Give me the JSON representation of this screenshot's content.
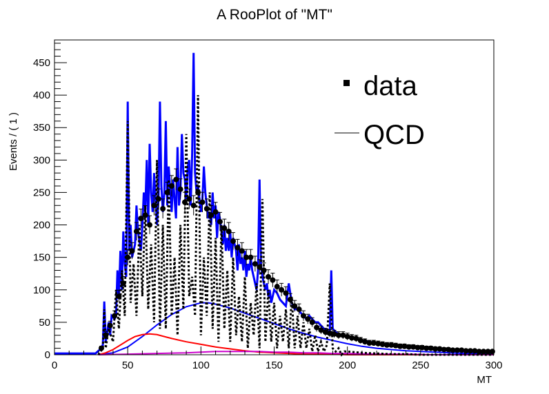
{
  "chart_data": {
    "type": "line",
    "title": "A RooPlot of \"MT\"",
    "xlabel": "MT",
    "ylabel": "Events / ( 1 )",
    "xlim": [
      0,
      300
    ],
    "ylim": [
      0,
      485
    ],
    "x_ticks": [
      "0",
      "50",
      "100",
      "150",
      "200",
      "250",
      "300"
    ],
    "y_ticks": [
      "0",
      "50",
      "100",
      "150",
      "200",
      "250",
      "300",
      "350",
      "400",
      "450"
    ],
    "grid": false,
    "legend": {
      "position": "top-right",
      "entries": [
        {
          "label": "data",
          "marker": "square"
        },
        {
          "label": "QCD",
          "marker": "line"
        }
      ]
    },
    "data_points": {
      "x": [
        32,
        35,
        38,
        41,
        44,
        47,
        50,
        53,
        56,
        59,
        62,
        65,
        68,
        71,
        74,
        77,
        80,
        83,
        86,
        89,
        92,
        95,
        98,
        101,
        104,
        107,
        110,
        113,
        116,
        119,
        122,
        125,
        128,
        131,
        134,
        137,
        140,
        143,
        146,
        149,
        152,
        155,
        158,
        161,
        164,
        167,
        170,
        173,
        176,
        179,
        182,
        185,
        188,
        191,
        194,
        197,
        200,
        203,
        206,
        209,
        212,
        215,
        218,
        221,
        224,
        227,
        230,
        233,
        236,
        239,
        242,
        245,
        248,
        251,
        254,
        257,
        260,
        263,
        266,
        269,
        272,
        275,
        278,
        281,
        284,
        287,
        290,
        293,
        296,
        299
      ],
      "y": [
        10,
        30,
        45,
        60,
        90,
        110,
        150,
        160,
        190,
        210,
        215,
        200,
        230,
        240,
        225,
        250,
        260,
        270,
        255,
        235,
        240,
        230,
        250,
        235,
        225,
        215,
        220,
        205,
        195,
        190,
        175,
        165,
        160,
        150,
        150,
        140,
        135,
        130,
        120,
        115,
        105,
        100,
        95,
        85,
        75,
        70,
        60,
        55,
        50,
        42,
        38,
        35,
        33,
        32,
        30,
        30,
        28,
        26,
        25,
        22,
        20,
        18,
        18,
        17,
        16,
        15,
        15,
        14,
        13,
        13,
        12,
        12,
        11,
        11,
        10,
        10,
        9,
        9,
        8,
        8,
        7,
        7,
        7,
        6,
        6,
        6,
        5,
        5,
        5,
        5
      ]
    },
    "series": [
      {
        "name": "QCD",
        "color": "#0000ff",
        "x": [
          0,
          28,
          31,
          33,
          34,
          35,
          37,
          38,
          39,
          41,
          42,
          43,
          44,
          45,
          46,
          47,
          48,
          49,
          50,
          51,
          52,
          53,
          55,
          56,
          57,
          59,
          60,
          61,
          62,
          63,
          64,
          65,
          66,
          67,
          68,
          70,
          71,
          72,
          73,
          74,
          75,
          76,
          77,
          78,
          80,
          81,
          82,
          83,
          84,
          85,
          86,
          87,
          88,
          89,
          90,
          91,
          92,
          93,
          94,
          95,
          96,
          97,
          98,
          99,
          100,
          101,
          102,
          103,
          104,
          105,
          106,
          107,
          108,
          109,
          110,
          111,
          112,
          113,
          114,
          115,
          116,
          117,
          118,
          119,
          120,
          121,
          122,
          123,
          124,
          125,
          126,
          127,
          128,
          129,
          130,
          131,
          132,
          133,
          134,
          135,
          136,
          137,
          138,
          139,
          140,
          141,
          142,
          143,
          144,
          145,
          146,
          147,
          148,
          150,
          152,
          154,
          156,
          158,
          160,
          162,
          164,
          166,
          168,
          170,
          172,
          174,
          176,
          178,
          180,
          182,
          184,
          186,
          187,
          188,
          189,
          190,
          192,
          195,
          200,
          205,
          210,
          220,
          230,
          240,
          250,
          260,
          270,
          280,
          290,
          300
        ],
        "y": [
          2,
          2,
          8,
          15,
          82,
          20,
          50,
          30,
          60,
          55,
          60,
          130,
          90,
          160,
          100,
          190,
          140,
          120,
          390,
          160,
          200,
          150,
          170,
          230,
          190,
          160,
          200,
          250,
          220,
          300,
          200,
          325,
          250,
          220,
          280,
          200,
          240,
          390,
          260,
          220,
          250,
          360,
          230,
          290,
          220,
          270,
          240,
          210,
          320,
          230,
          250,
          340,
          280,
          270,
          240,
          290,
          300,
          230,
          310,
          465,
          280,
          250,
          260,
          240,
          220,
          240,
          290,
          250,
          230,
          210,
          220,
          200,
          250,
          210,
          230,
          180,
          220,
          210,
          190,
          170,
          200,
          160,
          180,
          160,
          190,
          150,
          180,
          170,
          160,
          130,
          170,
          140,
          150,
          130,
          160,
          120,
          140,
          130,
          150,
          130,
          120,
          110,
          100,
          130,
          270,
          140,
          120,
          110,
          100,
          110,
          90,
          100,
          80,
          100,
          95,
          85,
          80,
          75,
          110,
          80,
          70,
          70,
          65,
          60,
          55,
          60,
          55,
          50,
          50,
          45,
          40,
          38,
          36,
          35,
          130,
          40,
          35,
          30,
          28,
          25,
          22,
          18,
          15,
          12,
          10,
          8,
          6,
          5,
          4,
          3
        ]
      },
      {
        "name": "",
        "color": "#0000ff",
        "x": [
          30,
          40,
          50,
          60,
          70,
          80,
          90,
          100,
          105,
          110,
          120,
          130,
          140,
          150,
          160,
          170,
          180,
          190,
          200,
          210,
          220,
          230,
          240,
          250,
          260,
          270,
          280,
          290,
          300
        ],
        "y": [
          0,
          3,
          12,
          28,
          46,
          62,
          74,
          80,
          80,
          78,
          72,
          64,
          56,
          48,
          40,
          33,
          27,
          22,
          17,
          13,
          10,
          8,
          6,
          5,
          4,
          3,
          2,
          2,
          1
        ]
      },
      {
        "name": "",
        "color": "#ff0000",
        "x": [
          30,
          35,
          40,
          45,
          50,
          55,
          60,
          65,
          70,
          75,
          80,
          90,
          100,
          110,
          120,
          130,
          140,
          150,
          160,
          170,
          180,
          190,
          200,
          220,
          240,
          260,
          280,
          300
        ],
        "y": [
          0,
          3,
          8,
          15,
          22,
          28,
          31,
          32,
          31,
          28,
          25,
          20,
          16,
          12,
          9,
          6,
          4,
          3,
          2,
          1,
          1,
          1,
          0,
          0,
          0,
          0,
          0,
          0
        ]
      },
      {
        "name": "",
        "color": "#cc00cc",
        "x": [
          30,
          50,
          70,
          90,
          100,
          110,
          120,
          130,
          140,
          150,
          160,
          170,
          180,
          190,
          200,
          220,
          240,
          260,
          280,
          300
        ],
        "y": [
          0,
          1,
          2,
          3,
          4,
          5,
          5,
          5,
          5,
          4,
          4,
          3,
          3,
          2,
          2,
          1,
          1,
          0,
          0,
          0
        ]
      },
      {
        "name": "",
        "color": "#000000",
        "dashed": true,
        "x": [
          30,
          33,
          34,
          35,
          37,
          40,
          42,
          44,
          46,
          48,
          50,
          52,
          54,
          56,
          58,
          60,
          62,
          64,
          66,
          68,
          70,
          72,
          74,
          76,
          78,
          80,
          82,
          84,
          86,
          88,
          90,
          92,
          94,
          96,
          98,
          100,
          102,
          104,
          106,
          108,
          110,
          112,
          114,
          116,
          118,
          120,
          122,
          124,
          126,
          128,
          130,
          132,
          134,
          136,
          138,
          140,
          142,
          144,
          146,
          148,
          150,
          152,
          154,
          156,
          158,
          160,
          162,
          164,
          166,
          168,
          170,
          172,
          174,
          176,
          178,
          180,
          182,
          184,
          186,
          188,
          190,
          192,
          194,
          196,
          198,
          200,
          210,
          220,
          230,
          240,
          250,
          260,
          270,
          280,
          290,
          300
        ],
        "y": [
          0,
          10,
          70,
          10,
          40,
          20,
          100,
          40,
          130,
          60,
          360,
          80,
          140,
          60,
          200,
          90,
          230,
          70,
          170,
          50,
          300,
          40,
          200,
          40,
          270,
          60,
          150,
          30,
          200,
          70,
          340,
          90,
          120,
          60,
          400,
          30,
          150,
          60,
          250,
          40,
          180,
          20,
          200,
          40,
          130,
          20,
          150,
          30,
          90,
          20,
          120,
          10,
          80,
          30,
          110,
          10,
          240,
          20,
          100,
          20,
          80,
          10,
          60,
          20,
          70,
          10,
          90,
          10,
          60,
          10,
          50,
          10,
          40,
          5,
          30,
          5,
          20,
          5,
          15,
          110,
          10,
          5,
          10,
          0,
          5,
          5,
          3,
          2,
          1,
          1,
          0,
          0,
          0,
          0,
          0,
          0
        ]
      }
    ]
  }
}
